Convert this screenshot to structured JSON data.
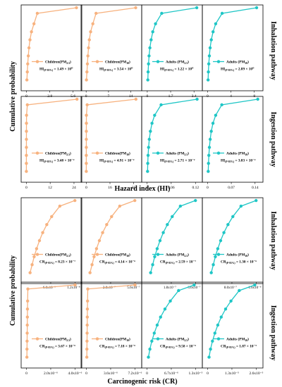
{
  "figure": {
    "y_label": "Cumulative probability",
    "top_x_label": "Hazard index (HI)",
    "bottom_x_label": "Carcinogenic risk (CR)",
    "side_labels": [
      "Inhalation pathway",
      "Ingestion pathway",
      "Inhalation pathway",
      "Ingestion pathway"
    ],
    "colors": {
      "children": "#f7b27f",
      "adults": "#1fc6c6"
    }
  },
  "chart_data": [
    {
      "type": "line",
      "group": "children",
      "legend": "Children(PM2.5)",
      "stat": "HI(P-95%) = 1.49 × 10⁰",
      "ticks": [
        "0",
        "2.8",
        "5.6"
      ],
      "tick_values": [
        0,
        2.8,
        5.6
      ],
      "xlim": [
        -0.3,
        6.3
      ],
      "ylim": [
        0,
        1
      ],
      "x": [
        0.05,
        0.1,
        0.15,
        0.22,
        0.3,
        0.42,
        0.6,
        0.9,
        1.3,
        6.0
      ],
      "y": [
        0.1,
        0.2,
        0.3,
        0.4,
        0.5,
        0.6,
        0.7,
        0.8,
        0.93,
        1.0
      ]
    },
    {
      "type": "line",
      "group": "children",
      "legend": "Children(PM10)",
      "stat": "HI(P-95%) = 3.54 × 10⁰",
      "ticks": [
        "0",
        "7",
        "14"
      ],
      "tick_values": [
        0,
        7,
        14
      ],
      "xlim": [
        -0.7,
        16.5
      ],
      "ylim": [
        0,
        1
      ],
      "x": [
        0.1,
        0.25,
        0.4,
        0.55,
        0.75,
        1.0,
        1.4,
        2.1,
        3.1,
        15.5
      ],
      "y": [
        0.1,
        0.2,
        0.3,
        0.4,
        0.5,
        0.6,
        0.7,
        0.8,
        0.93,
        1.0
      ]
    },
    {
      "type": "line",
      "group": "adults",
      "legend": "Adults (PM2.5)",
      "stat": "HI(P-95%) = 1.22 × 10⁰",
      "ticks": [
        "0",
        "1.7",
        "3.4"
      ],
      "tick_values": [
        0,
        1.7,
        3.4
      ],
      "xlim": [
        -0.2,
        3.8
      ],
      "ylim": [
        0,
        1
      ],
      "x": [
        0.04,
        0.06,
        0.09,
        0.13,
        0.19,
        0.28,
        0.4,
        0.6,
        1.05,
        3.6
      ],
      "y": [
        0.1,
        0.2,
        0.3,
        0.4,
        0.5,
        0.6,
        0.7,
        0.8,
        0.93,
        1.0
      ]
    },
    {
      "type": "line",
      "group": "adults",
      "legend": "Adults (PM10)",
      "stat": "HI(P-95%) = 2.89 × 10⁰",
      "ticks": [
        "0",
        "4",
        "8"
      ],
      "tick_values": [
        0,
        4,
        8
      ],
      "xlim": [
        -0.4,
        9.0
      ],
      "ylim": [
        0,
        1
      ],
      "x": [
        0.1,
        0.15,
        0.22,
        0.32,
        0.45,
        0.65,
        0.95,
        1.4,
        2.5,
        8.4
      ],
      "y": [
        0.1,
        0.2,
        0.3,
        0.4,
        0.5,
        0.6,
        0.7,
        0.8,
        0.93,
        1.0
      ]
    },
    {
      "type": "line",
      "group": "children",
      "legend": "Children(PM2.5)",
      "stat": "HI(P-95%) = 3.48 × 10⁻²",
      "ticks": [
        "0",
        "12",
        "24"
      ],
      "tick_values": [
        0,
        12,
        24
      ],
      "xlim": [
        -1.2,
        26.5
      ],
      "ylim": [
        0,
        1
      ],
      "x": [
        0.01,
        0.015,
        0.02,
        0.025,
        0.03,
        0.04,
        0.06,
        0.1,
        0.5,
        25.5
      ],
      "y": [
        0.1,
        0.2,
        0.3,
        0.4,
        0.5,
        0.6,
        0.7,
        0.8,
        0.93,
        1.0
      ]
    },
    {
      "type": "line",
      "group": "children",
      "legend": "Children(PM10)",
      "stat": "HI(P-95%) = 4.91 × 10⁻²",
      "ticks": [
        "0",
        "16",
        "32"
      ],
      "tick_values": [
        0,
        16,
        32
      ],
      "xlim": [
        -1.6,
        35.5
      ],
      "ylim": [
        0,
        1
      ],
      "x": [
        0.01,
        0.015,
        0.02,
        0.025,
        0.03,
        0.04,
        0.06,
        0.1,
        0.6,
        33.5
      ],
      "y": [
        0.1,
        0.2,
        0.3,
        0.4,
        0.5,
        0.6,
        0.7,
        0.8,
        0.93,
        1.0
      ]
    },
    {
      "type": "line",
      "group": "adults",
      "legend": "Adults (PM2.5)",
      "stat": "HI(P-95%) = 2.71 × 10⁻²",
      "ticks": [
        "0",
        "0.06",
        "0.12"
      ],
      "tick_values": [
        0,
        0.06,
        0.12
      ],
      "xlim": [
        -0.006,
        0.13
      ],
      "ylim": [
        0,
        1
      ],
      "x": [
        0.0015,
        0.002,
        0.0028,
        0.004,
        0.0058,
        0.0085,
        0.0125,
        0.019,
        0.035,
        0.124
      ],
      "y": [
        0.1,
        0.2,
        0.3,
        0.4,
        0.5,
        0.6,
        0.7,
        0.8,
        0.93,
        1.0
      ]
    },
    {
      "type": "line",
      "group": "adults",
      "legend": "Adults (PM10)",
      "stat": "HI(P-95%) = 3.83 × 10⁻²",
      "ticks": [
        "0",
        "0.07",
        "0.14"
      ],
      "tick_values": [
        0,
        0.07,
        0.14
      ],
      "xlim": [
        -0.007,
        0.155
      ],
      "ylim": [
        0,
        1
      ],
      "x": [
        0.002,
        0.0028,
        0.0039,
        0.0055,
        0.0078,
        0.011,
        0.016,
        0.024,
        0.042,
        0.148
      ],
      "y": [
        0.1,
        0.2,
        0.3,
        0.4,
        0.5,
        0.6,
        0.7,
        0.8,
        0.93,
        1.0
      ]
    },
    {
      "type": "line",
      "group": "children",
      "legend": "Children(PM2.5)",
      "stat": "CR(P-95%) = 8.23 × 10⁻⁷",
      "ticks": [],
      "tick_values": [],
      "xlim": [
        -0.1,
        1.25
      ],
      "ylim": [
        0,
        1
      ],
      "x": [
        0.05,
        0.1,
        0.15,
        0.21,
        0.28,
        0.36,
        0.46,
        0.58,
        0.78,
        1.15
      ],
      "y": [
        0.1,
        0.2,
        0.3,
        0.4,
        0.5,
        0.6,
        0.7,
        0.8,
        0.93,
        1.0
      ]
    },
    {
      "type": "line",
      "group": "children",
      "legend": "Children(PM10)",
      "stat": "CR(P-95%) = 4.14 × 10⁻⁶",
      "ticks": [],
      "tick_values": [],
      "xlim": [
        -0.1,
        1.25
      ],
      "ylim": [
        0,
        1
      ],
      "x": [
        0.05,
        0.1,
        0.15,
        0.21,
        0.28,
        0.36,
        0.46,
        0.58,
        0.78,
        1.15
      ],
      "y": [
        0.1,
        0.2,
        0.3,
        0.4,
        0.5,
        0.6,
        0.7,
        0.8,
        0.93,
        1.0
      ]
    },
    {
      "type": "line",
      "group": "adults",
      "legend": "Adults (PM2.5)",
      "stat": "CR(P-95%) = 2.59 × 10⁻⁷",
      "ticks": [],
      "tick_values": [],
      "xlim": [
        -0.1,
        1.25
      ],
      "ylim": [
        0,
        1
      ],
      "x": [
        0.05,
        0.1,
        0.15,
        0.21,
        0.28,
        0.36,
        0.46,
        0.58,
        0.78,
        1.15
      ],
      "y": [
        0.1,
        0.2,
        0.3,
        0.4,
        0.5,
        0.6,
        0.7,
        0.8,
        0.93,
        1.0
      ]
    },
    {
      "type": "line",
      "group": "adults",
      "legend": "Adults (PM10)",
      "stat": "CR(P-95%) = 1.30 × 10⁻⁶",
      "ticks": [],
      "tick_values": [],
      "xlim": [
        -0.1,
        1.25
      ],
      "ylim": [
        0,
        1
      ],
      "x": [
        0.05,
        0.1,
        0.15,
        0.21,
        0.28,
        0.36,
        0.46,
        0.58,
        0.78,
        1.15
      ],
      "y": [
        0.1,
        0.2,
        0.3,
        0.4,
        0.5,
        0.6,
        0.7,
        0.8,
        0.93,
        1.0
      ]
    },
    {
      "type": "line",
      "group": "children",
      "legend": "Children(PM2.5)",
      "stat": "CR(P-95%) = 3.67 × 10⁻⁶",
      "top_ticks": [
        "6.0x10⁻⁹",
        "1.2x10⁻⁸"
      ],
      "top_tick_values": [
        0.5,
        1.0
      ],
      "ticks": [
        "0",
        "2.0x10⁻⁶",
        "4.0x10⁻⁶"
      ],
      "tick_values": [
        0,
        0.5,
        1.0
      ],
      "xlim": [
        -0.05,
        1.08
      ],
      "ylim": [
        0,
        1
      ],
      "x": [
        0.01,
        0.012,
        0.014,
        0.016,
        0.018,
        0.02,
        0.022,
        0.025,
        0.03,
        1.0
      ],
      "y": [
        0.1,
        0.2,
        0.3,
        0.4,
        0.5,
        0.6,
        0.7,
        0.8,
        0.95,
        1.0
      ]
    },
    {
      "type": "line",
      "group": "children",
      "legend": "Children(PM10)",
      "stat": "CR(P-95%) = 7.18 × 10⁻⁶",
      "top_ticks": [
        "2.8x10⁻⁷",
        "5.6x10⁻⁷"
      ],
      "top_tick_values": [
        0.5,
        1.0
      ],
      "ticks": [
        "0",
        "3.6x10⁻⁶",
        "7.2x10⁻⁶"
      ],
      "tick_values": [
        0,
        0.5,
        1.0
      ],
      "xlim": [
        -0.05,
        1.08
      ],
      "ylim": [
        0,
        1
      ],
      "x": [
        0.01,
        0.012,
        0.014,
        0.016,
        0.018,
        0.02,
        0.022,
        0.025,
        0.03,
        1.0
      ],
      "y": [
        0.1,
        0.2,
        0.3,
        0.4,
        0.5,
        0.6,
        0.7,
        0.8,
        0.95,
        1.0
      ]
    },
    {
      "type": "line",
      "group": "adults",
      "legend": "Adults (PM2.5)",
      "stat": "CR(P-95%) = 9.58 × 10⁻⁶",
      "top_ticks": [
        "1.8x10⁻⁷",
        "3.6x10⁻⁷"
      ],
      "top_tick_values": [
        0.5,
        1.0
      ],
      "ticks": [
        "0",
        "6.7x10⁻⁶",
        "1.3x10⁻⁵"
      ],
      "tick_values": [
        0,
        0.5,
        1.0
      ],
      "xlim": [
        -0.05,
        1.08
      ],
      "ylim": [
        0,
        1
      ],
      "x": [
        0.03,
        0.06,
        0.1,
        0.15,
        0.21,
        0.28,
        0.37,
        0.48,
        0.65,
        0.97
      ],
      "y": [
        0.1,
        0.2,
        0.3,
        0.4,
        0.5,
        0.6,
        0.7,
        0.8,
        0.93,
        1.0
      ]
    },
    {
      "type": "line",
      "group": "adults",
      "legend": "Adults (PM10)",
      "stat": "CR(P-95%) = 1.87 × 10⁻⁵",
      "top_ticks": [
        "8.0x10⁻⁷",
        "1.6x10⁻⁶"
      ],
      "top_tick_values": [
        0.5,
        1.0
      ],
      "ticks": [
        "0",
        "1.3x10⁻⁵",
        "2.6x10⁻⁵"
      ],
      "tick_values": [
        0,
        0.5,
        1.0
      ],
      "xlim": [
        -0.05,
        1.08
      ],
      "ylim": [
        0,
        1
      ],
      "x": [
        0.03,
        0.06,
        0.1,
        0.15,
        0.21,
        0.28,
        0.37,
        0.48,
        0.65,
        0.97
      ],
      "y": [
        0.1,
        0.2,
        0.3,
        0.4,
        0.5,
        0.6,
        0.7,
        0.8,
        0.93,
        1.0
      ]
    }
  ]
}
